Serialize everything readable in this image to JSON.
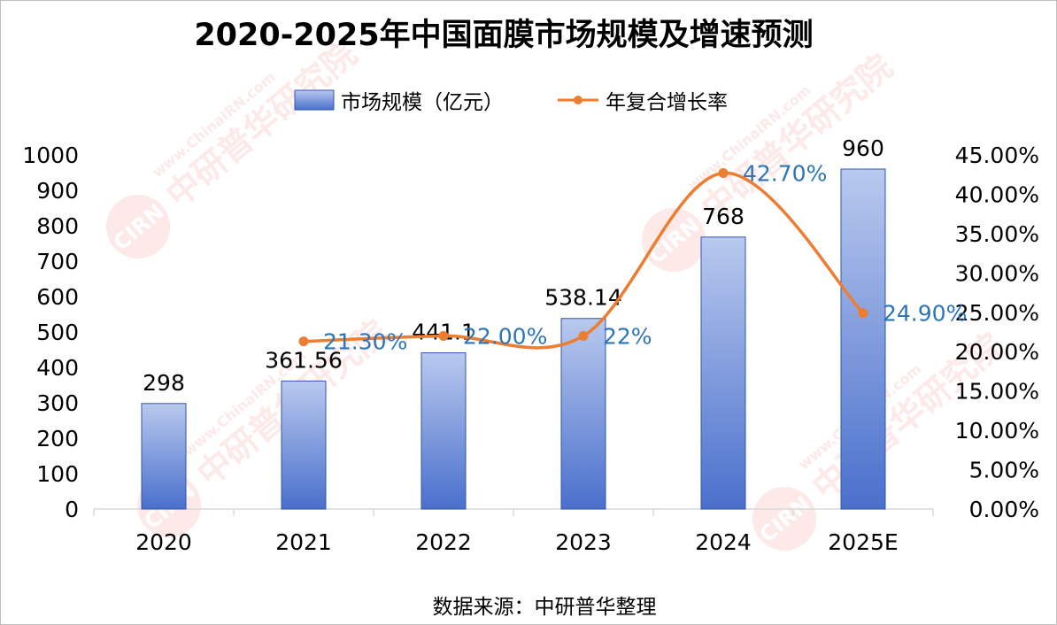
{
  "chart_data": {
    "type": "bar",
    "title": "2020-2025年中国面膜市场规模及增速预测",
    "categories": [
      "2020",
      "2021",
      "2022",
      "2023",
      "2024",
      "2025E"
    ],
    "series": [
      {
        "name": "市场规模（亿元）",
        "type": "bar",
        "axis": "left",
        "values": [
          298,
          361.56,
          441.1,
          538.14,
          768,
          960
        ],
        "labels": [
          "298",
          "361.56",
          "441.1",
          "538.14",
          "768",
          "960"
        ]
      },
      {
        "name": "年复合增长率",
        "type": "line",
        "axis": "right",
        "values": [
          null,
          21.3,
          22.0,
          22.0,
          42.7,
          24.9
        ],
        "labels": [
          null,
          "21.30%",
          "22.00%",
          "22%",
          "42.70%",
          "24.90%"
        ]
      }
    ],
    "y_left": {
      "min": 0,
      "max": 1000,
      "step": 100,
      "ticks": [
        "0",
        "100",
        "200",
        "300",
        "400",
        "500",
        "600",
        "700",
        "800",
        "900",
        "1000"
      ]
    },
    "y_right": {
      "min": 0,
      "max": 45,
      "step": 5,
      "ticks": [
        "0.00%",
        "5.00%",
        "10.00%",
        "15.00%",
        "20.00%",
        "25.00%",
        "30.00%",
        "35.00%",
        "40.00%",
        "45.00%"
      ]
    },
    "grid": false,
    "legend_position": "top-center",
    "source": "数据来源：中研普华整理",
    "watermark": {
      "text_cn": "中研普华研究院",
      "text_en": "www.ChinaIRN.com",
      "logo": "CIRN"
    },
    "colors": {
      "bar_top": "#b9c9ee",
      "bar_bottom": "#4a70cc",
      "bar_stroke": "#2f55b0",
      "line": "#ed7d31",
      "line_label": "#2e75b6",
      "axis": "#d9d9d9",
      "text": "#000000"
    }
  }
}
